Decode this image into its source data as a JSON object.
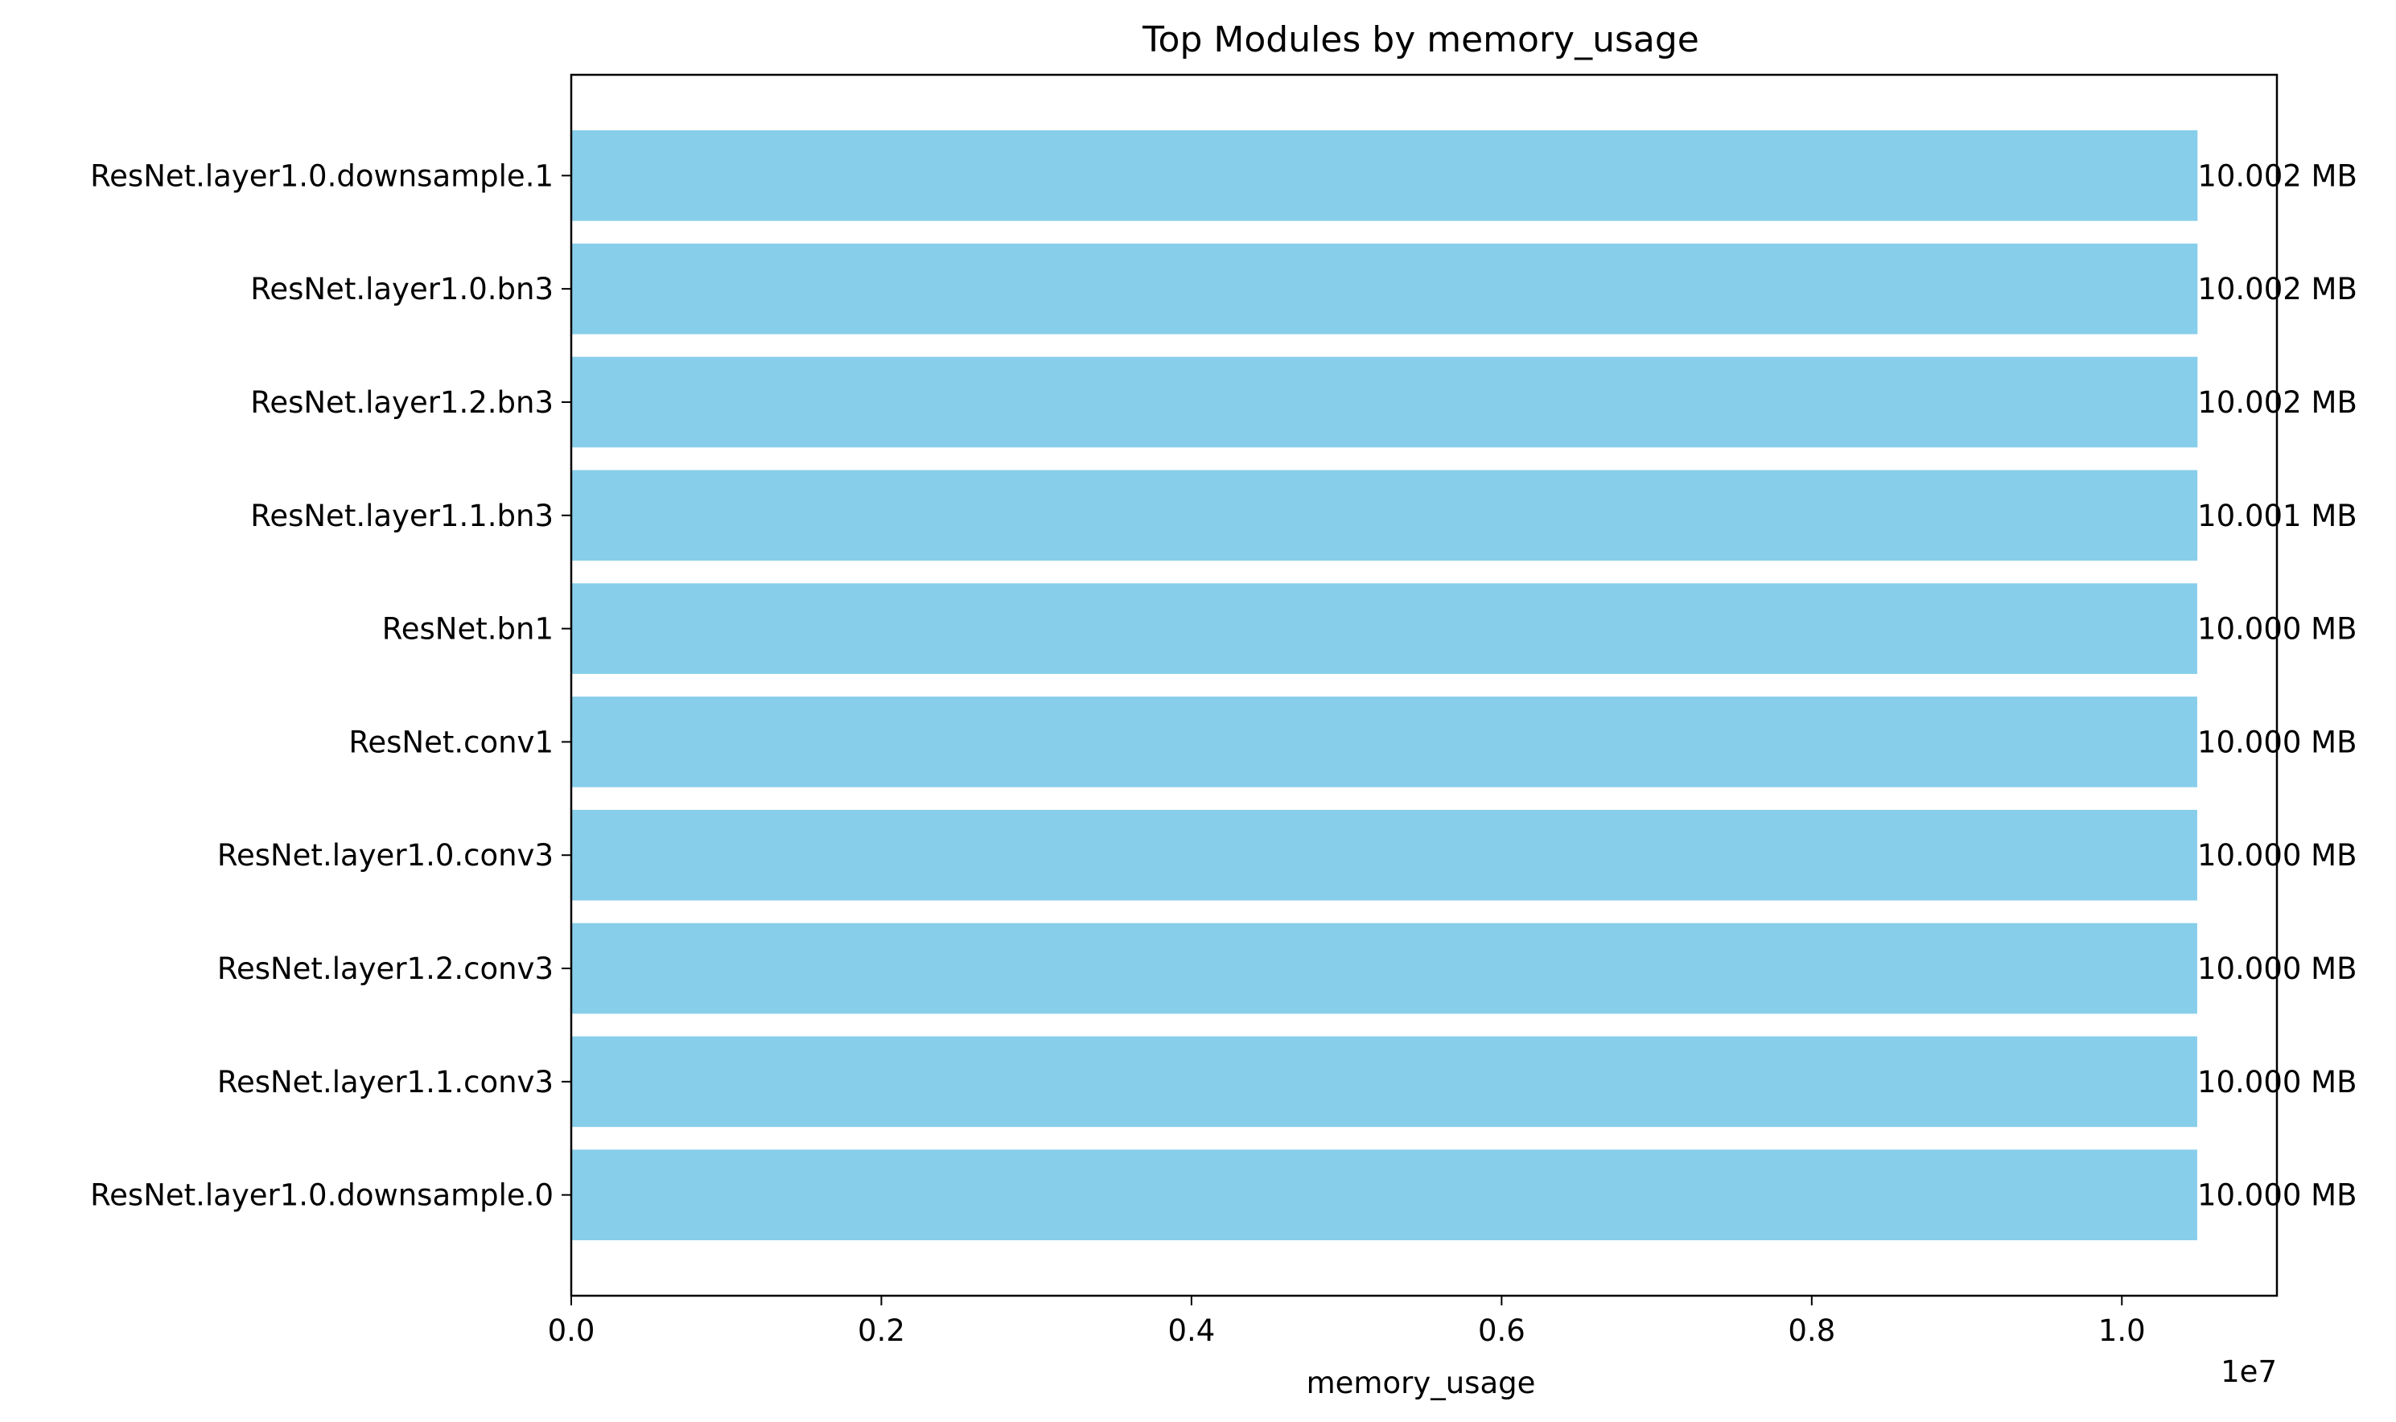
{
  "chart_data": {
    "type": "bar",
    "orientation": "horizontal",
    "title": "Top Modules by memory_usage",
    "xlabel": "memory_usage",
    "ylabel": "",
    "x_offset_text": "1e7",
    "xlim": [
      0,
      11000000
    ],
    "x_ticks": [
      0,
      2000000,
      4000000,
      6000000,
      8000000,
      10000000
    ],
    "x_tick_labels": [
      "0.0",
      "0.2",
      "0.4",
      "0.6",
      "0.8",
      "1.0"
    ],
    "categories": [
      "ResNet.layer1.0.downsample.1",
      "ResNet.layer1.0.bn3",
      "ResNet.layer1.2.bn3",
      "ResNet.layer1.1.bn3",
      "ResNet.bn1",
      "ResNet.conv1",
      "ResNet.layer1.0.conv3",
      "ResNet.layer1.2.conv3",
      "ResNet.layer1.1.conv3",
      "ResNet.layer1.0.downsample.0"
    ],
    "values": [
      10488000,
      10488000,
      10488000,
      10487000,
      10486000,
      10486000,
      10486000,
      10486000,
      10486000,
      10486000
    ],
    "data_labels": [
      "10.002 MB",
      "10.002 MB",
      "10.002 MB",
      "10.001 MB",
      "10.000 MB",
      "10.000 MB",
      "10.000 MB",
      "10.000 MB",
      "10.000 MB",
      "10.000 MB"
    ],
    "bar_color": "#87ceeb",
    "grid": false,
    "legend": "none"
  }
}
